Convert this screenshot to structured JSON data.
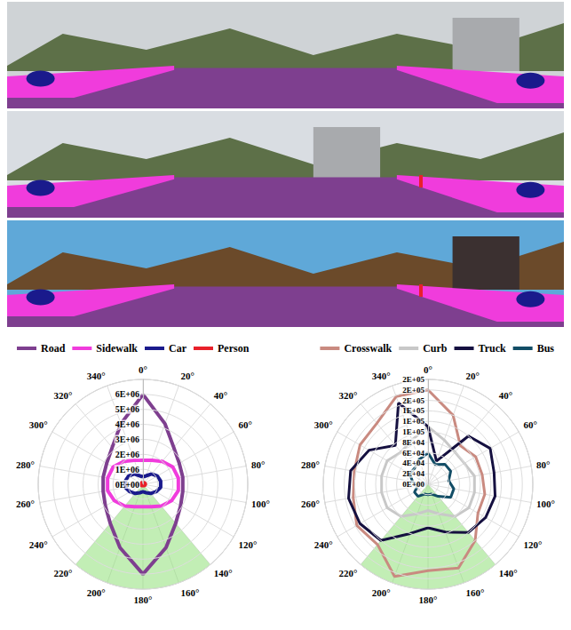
{
  "chart_data": [
    {
      "type": "radar",
      "legend": "top",
      "grid": true,
      "x": [
        0,
        20,
        40,
        60,
        80,
        100,
        120,
        140,
        160,
        180,
        200,
        220,
        240,
        260,
        280,
        300,
        320,
        340
      ],
      "xlim": [
        0,
        360
      ],
      "xticks": [
        {
          "value": 0,
          "label": "0°"
        },
        {
          "value": 20,
          "label": "20°"
        },
        {
          "value": 40,
          "label": "40°"
        },
        {
          "value": 60,
          "label": "60°"
        },
        {
          "value": 80,
          "label": "80°"
        },
        {
          "value": 100,
          "label": "100°"
        },
        {
          "value": 120,
          "label": "120°"
        },
        {
          "value": 140,
          "label": "140°"
        },
        {
          "value": 160,
          "label": "160°"
        },
        {
          "value": 180,
          "label": "180°"
        },
        {
          "value": 200,
          "label": "200°"
        },
        {
          "value": 220,
          "label": "220°"
        },
        {
          "value": 240,
          "label": "240°"
        },
        {
          "value": 260,
          "label": "260°"
        },
        {
          "value": 280,
          "label": "280°"
        },
        {
          "value": 300,
          "label": "300°"
        },
        {
          "value": 320,
          "label": "320°"
        },
        {
          "value": 340,
          "label": "340°"
        }
      ],
      "ylim": [
        0,
        7000000
      ],
      "yticks": [
        {
          "value": 0,
          "label": "0E+00"
        },
        {
          "value": 1000000,
          "label": "1E+06"
        },
        {
          "value": 2000000,
          "label": "2E+06"
        },
        {
          "value": 3000000,
          "label": "3E+06"
        },
        {
          "value": 4000000,
          "label": "4E+06"
        },
        {
          "value": 5000000,
          "label": "5E+06"
        },
        {
          "value": 6000000,
          "label": "6E+06"
        }
      ],
      "shaded_sector": [
        140,
        220
      ],
      "series": [
        {
          "name": "Road",
          "color": "#7e3f8f",
          "values": [
            6000000,
            4300000,
            3200000,
            2800000,
            2700000,
            2700000,
            2900000,
            3400000,
            4500000,
            6000000,
            4500000,
            3400000,
            2900000,
            2700000,
            2700000,
            2800000,
            3200000,
            4300000
          ]
        },
        {
          "name": "Sidewalk",
          "color": "#f03cdc",
          "values": [
            1600000,
            1700000,
            2000000,
            2300000,
            2400000,
            2400000,
            2200000,
            1900000,
            1600000,
            1500000,
            1600000,
            1900000,
            2200000,
            2400000,
            2400000,
            2300000,
            2000000,
            1700000
          ]
        },
        {
          "name": "Car",
          "color": "#1a1a8c",
          "values": [
            500000,
            600000,
            900000,
            1100000,
            1200000,
            1200000,
            1000000,
            800000,
            600000,
            500000,
            600000,
            800000,
            1000000,
            1200000,
            1200000,
            1100000,
            900000,
            600000
          ]
        },
        {
          "name": "Person",
          "color": "#e8202a",
          "values": [
            100000,
            110000,
            130000,
            150000,
            160000,
            160000,
            140000,
            120000,
            100000,
            90000,
            100000,
            120000,
            140000,
            160000,
            160000,
            150000,
            130000,
            110000
          ]
        }
      ]
    },
    {
      "type": "radar",
      "legend": "top",
      "grid": true,
      "x": [
        0,
        20,
        40,
        60,
        80,
        100,
        120,
        140,
        160,
        180,
        200,
        220,
        240,
        260,
        280,
        300,
        320,
        340
      ],
      "xlim": [
        0,
        360
      ],
      "xticks": [
        {
          "value": 0,
          "label": "0°"
        },
        {
          "value": 20,
          "label": "20°"
        },
        {
          "value": 40,
          "label": "40°"
        },
        {
          "value": 60,
          "label": "60°"
        },
        {
          "value": 80,
          "label": "80°"
        },
        {
          "value": 100,
          "label": "100°"
        },
        {
          "value": 120,
          "label": "120°"
        },
        {
          "value": 140,
          "label": "140°"
        },
        {
          "value": 160,
          "label": "160°"
        },
        {
          "value": 180,
          "label": "180°"
        },
        {
          "value": 200,
          "label": "200°"
        },
        {
          "value": 220,
          "label": "220°"
        },
        {
          "value": 240,
          "label": "240°"
        },
        {
          "value": 260,
          "label": "260°"
        },
        {
          "value": 280,
          "label": "280°"
        },
        {
          "value": 300,
          "label": "300°"
        },
        {
          "value": 320,
          "label": "320°"
        },
        {
          "value": 340,
          "label": "340°"
        }
      ],
      "ylim": [
        0,
        200000
      ],
      "yticks": [
        {
          "value": 0,
          "label": "0E+00"
        },
        {
          "value": 20000,
          "label": "2E+04"
        },
        {
          "value": 40000,
          "label": "4E+04"
        },
        {
          "value": 60000,
          "label": "6E+04"
        },
        {
          "value": 80000,
          "label": "8E+04"
        },
        {
          "value": 100000,
          "label": "1E+05"
        },
        {
          "value": 120000,
          "label": "1E+05"
        },
        {
          "value": 140000,
          "label": "1E+05"
        },
        {
          "value": 160000,
          "label": "2E+05"
        },
        {
          "value": 180000,
          "label": "2E+05"
        },
        {
          "value": 200000,
          "label": "2E+05"
        }
      ],
      "shaded_sector": [
        140,
        220
      ],
      "series": [
        {
          "name": "Crosswalk",
          "color": "#c98a80",
          "values": [
            180000,
            140000,
            96000,
            105000,
            105000,
            110000,
            110000,
            140000,
            170000,
            165000,
            187000,
            150000,
            157000,
            145000,
            143000,
            150000,
            152000,
            178000
          ]
        },
        {
          "name": "Curb",
          "color": "#c8c8c8",
          "values": [
            110000,
            90000,
            80000,
            80000,
            90000,
            90000,
            90000,
            80000,
            60000,
            50000,
            60000,
            80000,
            90000,
            90000,
            90000,
            90000,
            80000,
            90000
          ]
        },
        {
          "name": "Truck",
          "color": "#151040",
          "values": [
            110000,
            47000,
            120000,
            137000,
            128000,
            130000,
            127000,
            120000,
            97000,
            83000,
            100000,
            140000,
            150000,
            154000,
            150000,
            130000,
            97000,
            165000
          ]
        },
        {
          "name": "Bus",
          "color": "#124d66",
          "values": [
            60000,
            40000,
            50000,
            50000,
            40000,
            50000,
            50000,
            30000,
            20000,
            20000,
            20000,
            30000,
            30000,
            20000,
            30000,
            40000,
            40000,
            50000
          ]
        }
      ]
    }
  ]
}
